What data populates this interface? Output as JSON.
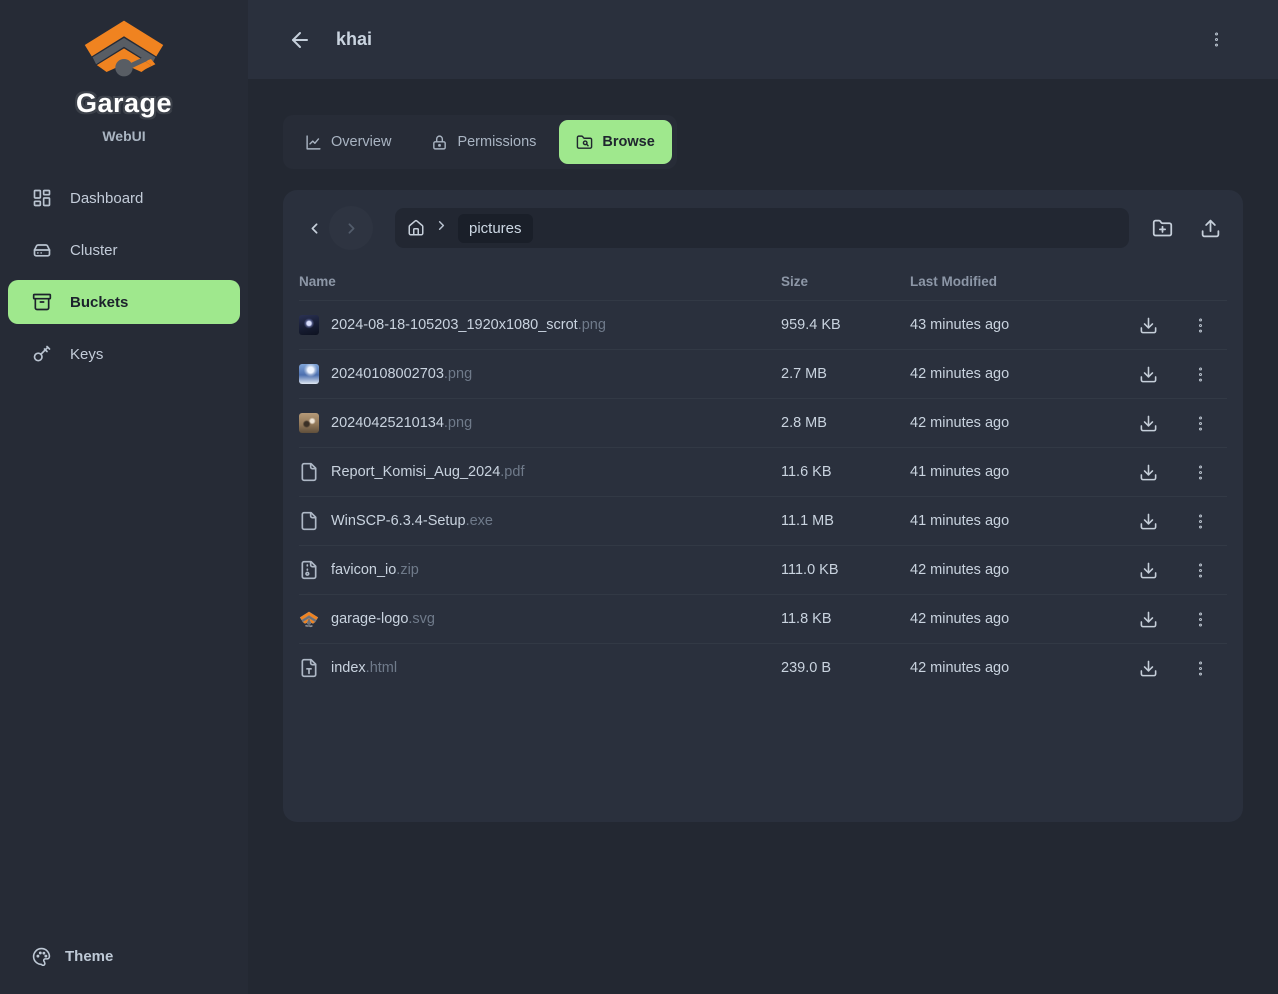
{
  "app": {
    "name": "Garage",
    "subtitle": "WebUI"
  },
  "colors": {
    "accent_green": "#9fe88d",
    "accent_orange": "#f08320",
    "background": "#232832",
    "surface": "#2a303d"
  },
  "sidebar": {
    "items": [
      {
        "label": "Dashboard",
        "icon": "dashboard-icon",
        "active": false
      },
      {
        "label": "Cluster",
        "icon": "cluster-icon",
        "active": false
      },
      {
        "label": "Buckets",
        "icon": "buckets-icon",
        "active": true
      },
      {
        "label": "Keys",
        "icon": "keys-icon",
        "active": false
      }
    ],
    "theme_label": "Theme"
  },
  "header": {
    "title": "khai"
  },
  "tabs": [
    {
      "label": "Overview",
      "icon": "chart-icon",
      "active": false
    },
    {
      "label": "Permissions",
      "icon": "lock-icon",
      "active": false
    },
    {
      "label": "Browse",
      "icon": "folder-search-icon",
      "active": true
    }
  ],
  "breadcrumb": {
    "path_label": "pictures"
  },
  "table": {
    "columns": [
      "Name",
      "Size",
      "Last Modified"
    ],
    "rows": [
      {
        "base": "2024-08-18-105203_1920x1080_scrot",
        "ext": ".png",
        "size": "959.4 KB",
        "modified": "43 minutes ago",
        "icon": "thumbnail-dark"
      },
      {
        "base": "20240108002703",
        "ext": ".png",
        "size": "2.7 MB",
        "modified": "42 minutes ago",
        "icon": "thumbnail-blue"
      },
      {
        "base": "20240425210134",
        "ext": ".png",
        "size": "2.8 MB",
        "modified": "42 minutes ago",
        "icon": "thumbnail-tan"
      },
      {
        "base": "Report_Komisi_Aug_2024",
        "ext": ".pdf",
        "size": "11.6 KB",
        "modified": "41 minutes ago",
        "icon": "file-icon"
      },
      {
        "base": "WinSCP-6.3.4-Setup",
        "ext": ".exe",
        "size": "11.1 MB",
        "modified": "41 minutes ago",
        "icon": "file-icon"
      },
      {
        "base": "favicon_io",
        "ext": ".zip",
        "size": "111.0 KB",
        "modified": "42 minutes ago",
        "icon": "file-archive-icon"
      },
      {
        "base": "garage-logo",
        "ext": ".svg",
        "size": "11.8 KB",
        "modified": "42 minutes ago",
        "icon": "garage-logo-thumbnail"
      },
      {
        "base": "index",
        "ext": ".html",
        "size": "239.0 B",
        "modified": "42 minutes ago",
        "icon": "file-type-icon"
      }
    ]
  }
}
